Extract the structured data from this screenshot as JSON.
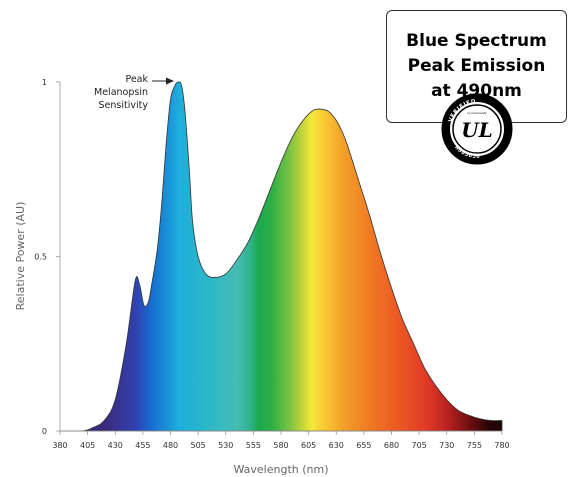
{
  "callout": {
    "lines": [
      "Blue Spectrum",
      "Peak Emission",
      "at 490nm"
    ]
  },
  "ul_mark": {
    "text": "UL",
    "ring_top": "VERIFIED",
    "ring_bottom": "A803650",
    "small_caps": "ul.com/verify"
  },
  "annotation": {
    "lines": [
      "Peak",
      "Melanopsin",
      "Sensitivity"
    ]
  },
  "chart_data": {
    "type": "area",
    "xlabel": "Wavelength (nm)",
    "ylabel": "Relative Power (AU)",
    "xlim": [
      380,
      780
    ],
    "ylim": [
      0,
      1
    ],
    "x_ticks": [
      380,
      405,
      430,
      455,
      480,
      505,
      530,
      555,
      580,
      605,
      630,
      655,
      680,
      705,
      730,
      755,
      780
    ],
    "y_ticks": [
      {
        "value": 0,
        "label": "0"
      },
      {
        "value": 0.5,
        "label": "0.5"
      },
      {
        "value": 1,
        "label": "1"
      }
    ],
    "grid": false,
    "fill": "visible-spectrum gradient",
    "series": [
      {
        "x": [
          380,
          400,
          410,
          420,
          430,
          440,
          448,
          452,
          456,
          460,
          463,
          468,
          472,
          476,
          480,
          484,
          487,
          490,
          493,
          497,
          500,
          505,
          512,
          520,
          530,
          540,
          550,
          560,
          570,
          580,
          590,
          600,
          610,
          620,
          625,
          630,
          635,
          640,
          650,
          660,
          670,
          680,
          690,
          700,
          710,
          720,
          730,
          740,
          750,
          760,
          770,
          780
        ],
        "y": [
          0.0,
          0.0,
          0.01,
          0.03,
          0.09,
          0.25,
          0.43,
          0.42,
          0.36,
          0.37,
          0.42,
          0.52,
          0.65,
          0.82,
          0.95,
          0.99,
          1.0,
          0.99,
          0.92,
          0.75,
          0.6,
          0.5,
          0.45,
          0.44,
          0.45,
          0.49,
          0.54,
          0.61,
          0.69,
          0.77,
          0.84,
          0.89,
          0.92,
          0.92,
          0.91,
          0.89,
          0.86,
          0.82,
          0.72,
          0.62,
          0.51,
          0.41,
          0.32,
          0.25,
          0.18,
          0.13,
          0.09,
          0.06,
          0.045,
          0.035,
          0.03,
          0.03
        ]
      }
    ],
    "annotations": [
      {
        "text": "Peak Melanopsin Sensitivity",
        "x": 487,
        "y": 1.0
      }
    ]
  }
}
